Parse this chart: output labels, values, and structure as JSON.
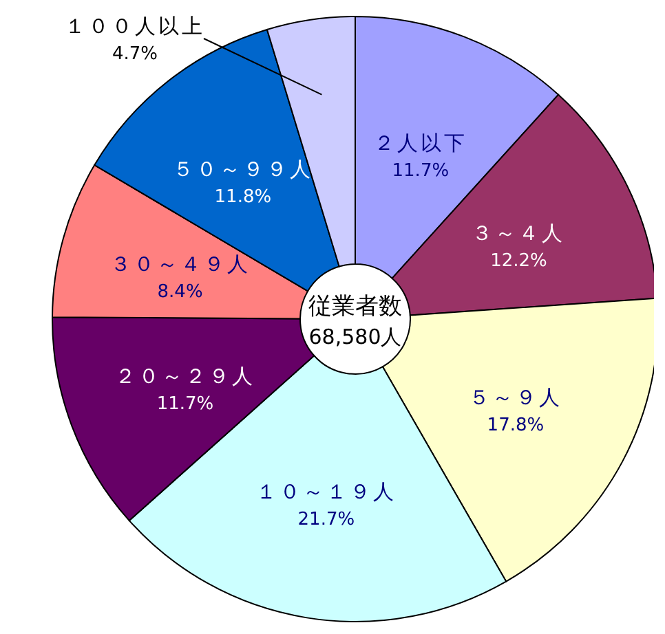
{
  "chart_data": {
    "type": "donut",
    "title": "従業者数",
    "subtitle": "68,580人",
    "categories": [
      "２人以下",
      "３～４人",
      "５～９人",
      "１０～１９人",
      "２０～２９人",
      "３０～４９人",
      "５０～９９人",
      "１００人以上"
    ],
    "values": [
      11.7,
      12.2,
      17.8,
      21.7,
      11.7,
      8.4,
      11.8,
      4.7
    ],
    "value_labels": [
      "11.7%",
      "12.2%",
      "17.8%",
      "21.7%",
      "11.7%",
      "8.4%",
      "11.8%",
      "4.7%"
    ],
    "colors": [
      "#a0a0ff",
      "#993366",
      "#ffffcc",
      "#ccffff",
      "#660066",
      "#ff8080",
      "#0066cc",
      "#ccccff"
    ]
  }
}
